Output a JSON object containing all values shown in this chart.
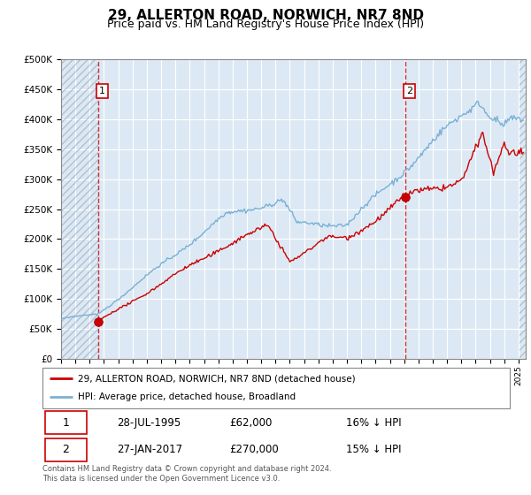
{
  "title": "29, ALLERTON ROAD, NORWICH, NR7 8ND",
  "subtitle": "Price paid vs. HM Land Registry's House Price Index (HPI)",
  "title_fontsize": 11,
  "subtitle_fontsize": 9,
  "ylim": [
    0,
    500000
  ],
  "yticks": [
    0,
    50000,
    100000,
    150000,
    200000,
    250000,
    300000,
    350000,
    400000,
    450000,
    500000
  ],
  "ytick_labels": [
    "£0",
    "£50K",
    "£100K",
    "£150K",
    "£200K",
    "£250K",
    "£300K",
    "£350K",
    "£400K",
    "£450K",
    "£500K"
  ],
  "xlim_start": 1993.0,
  "xlim_end": 2025.5,
  "background_color": "#dce9f5",
  "grid_color": "#ffffff",
  "hatch_color": "#b0b8c8",
  "sale1_year": 1995.57,
  "sale1_price": 62000,
  "sale2_year": 2017.08,
  "sale2_price": 270000,
  "sale_marker_color": "#cc0000",
  "sale_marker_size": 7,
  "vline_color": "#cc0000",
  "red_line_color": "#cc0000",
  "blue_line_color": "#7ab0d4",
  "legend1_label": "29, ALLERTON ROAD, NORWICH, NR7 8ND (detached house)",
  "legend2_label": "HPI: Average price, detached house, Broadland",
  "table_row1": [
    "1",
    "28-JUL-1995",
    "£62,000",
    "16% ↓ HPI"
  ],
  "table_row2": [
    "2",
    "27-JAN-2017",
    "£270,000",
    "15% ↓ HPI"
  ],
  "footnote": "Contains HM Land Registry data © Crown copyright and database right 2024.\nThis data is licensed under the Open Government Licence v3.0."
}
